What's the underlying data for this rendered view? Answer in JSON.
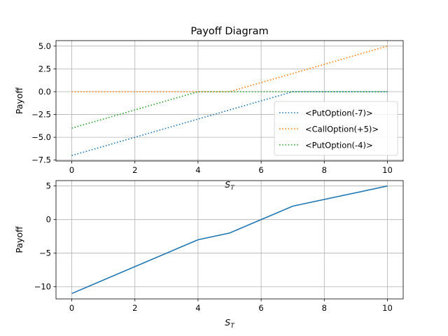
{
  "chart_data": [
    {
      "type": "line",
      "title": "Payoff Diagram",
      "xlabel": "S_T",
      "ylabel": "Payoff",
      "xlim": [
        -0.5,
        10.5
      ],
      "ylim": [
        -7.6,
        5.6
      ],
      "xticks": [
        0,
        2,
        4,
        6,
        8,
        10
      ],
      "yticks": [
        -7.5,
        -5.0,
        -2.5,
        0.0,
        2.5,
        5.0
      ],
      "ytick_labels": [
        "−7.5",
        "−5.0",
        "−2.5",
        "0.0",
        "2.5",
        "5.0"
      ],
      "grid": true,
      "legend_position": "lower-right",
      "series": [
        {
          "name": "<PutOption(-7)>",
          "color": "#1f77b4",
          "style": "dotted",
          "x": [
            0,
            7,
            10
          ],
          "y": [
            -7,
            0,
            0
          ]
        },
        {
          "name": "<CallOption(+5)>",
          "color": "#ff7f0e",
          "style": "dotted",
          "x": [
            0,
            5,
            10
          ],
          "y": [
            0,
            0,
            5
          ]
        },
        {
          "name": "<PutOption(-4)>",
          "color": "#2ca02c",
          "style": "dotted",
          "x": [
            0,
            4,
            10
          ],
          "y": [
            -4,
            0,
            0
          ]
        }
      ]
    },
    {
      "type": "line",
      "xlabel": "S_T",
      "ylabel": "Payoff",
      "xlim": [
        -0.5,
        10.5
      ],
      "ylim": [
        -11.8,
        5.8
      ],
      "xticks": [
        0,
        2,
        4,
        6,
        8,
        10
      ],
      "yticks": [
        -10,
        -5,
        0,
        5
      ],
      "ytick_labels": [
        "−10",
        "−5",
        "0",
        "5"
      ],
      "grid": true,
      "series": [
        {
          "color": "#1f77b4",
          "style": "solid",
          "x": [
            0,
            4,
            5,
            7,
            10
          ],
          "y": [
            -11,
            -3,
            -2,
            2,
            5
          ]
        }
      ]
    }
  ]
}
